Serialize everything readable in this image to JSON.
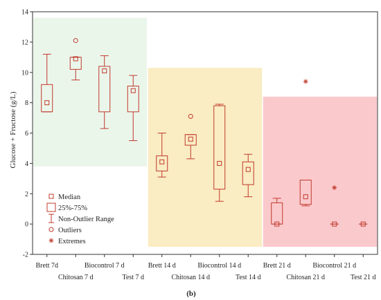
{
  "chart_data": {
    "type": "boxplot",
    "ylabel": "Glucose + Fructose (g/L)",
    "ylim": [
      -2,
      14
    ],
    "yticks": [
      -2,
      0,
      2,
      4,
      6,
      8,
      10,
      12,
      14
    ],
    "panel_label": "(b)",
    "categories": [
      "Brett 7d",
      "Chitosan 7 d",
      "Biocontrol 7 d",
      "Test 7 d",
      "Brett 14 d",
      "Chitosan 14 d",
      "Biocontrol 14 d",
      "Test 14 d",
      "Brett 21 d",
      "Chitosan 21 d",
      "Biocontrol 21 d",
      "Test 21 d"
    ],
    "groups": [
      {
        "stage": "7 d",
        "color": "#e6f4e6",
        "categories": [
          0,
          1,
          2,
          3
        ],
        "ymin": 3.8,
        "ymax": 13.6
      },
      {
        "stage": "14 d",
        "color": "#f9e7b4",
        "categories": [
          4,
          5,
          6,
          7
        ],
        "ymin": -1.5,
        "ymax": 10.3
      },
      {
        "stage": "21 d",
        "color": "#f9bcbf",
        "categories": [
          8,
          9,
          10,
          11
        ],
        "ymin": -1.5,
        "ymax": 8.4
      }
    ],
    "boxes": [
      {
        "median": 8.0,
        "q1": 7.4,
        "q3": 9.2,
        "min": 7.4,
        "max": 11.2,
        "outliers": [],
        "extremes": []
      },
      {
        "median": 10.9,
        "q1": 10.2,
        "q3": 11.0,
        "min": 9.5,
        "max": 11.0,
        "outliers": [
          12.1
        ],
        "extremes": []
      },
      {
        "median": 10.1,
        "q1": 7.4,
        "q3": 10.4,
        "min": 6.3,
        "max": 11.1,
        "outliers": [],
        "extremes": []
      },
      {
        "median": 8.8,
        "q1": 7.4,
        "q3": 9.1,
        "min": 5.5,
        "max": 9.8,
        "outliers": [],
        "extremes": []
      },
      {
        "median": 4.1,
        "q1": 3.5,
        "q3": 4.5,
        "min": 3.1,
        "max": 6.0,
        "outliers": [],
        "extremes": []
      },
      {
        "median": 5.6,
        "q1": 5.2,
        "q3": 5.9,
        "min": 4.3,
        "max": 5.9,
        "outliers": [
          7.1
        ],
        "extremes": []
      },
      {
        "median": 4.0,
        "q1": 2.3,
        "q3": 7.8,
        "min": 1.5,
        "max": 7.9,
        "outliers": [],
        "extremes": []
      },
      {
        "median": 3.6,
        "q1": 2.6,
        "q3": 4.1,
        "min": 1.8,
        "max": 4.6,
        "outliers": [],
        "extremes": []
      },
      {
        "median": 0.0,
        "q1": 0.0,
        "q3": 1.4,
        "min": 0.0,
        "max": 1.7,
        "outliers": [],
        "extremes": []
      },
      {
        "median": 1.8,
        "q1": 1.3,
        "q3": 2.9,
        "min": 1.2,
        "max": 2.9,
        "outliers": [],
        "extremes": [
          9.4
        ]
      },
      {
        "median": 0.0,
        "q1": 0.0,
        "q3": 0.0,
        "min": 0.0,
        "max": 0.0,
        "outliers": [],
        "extremes": [
          2.4
        ]
      },
      {
        "median": 0.0,
        "q1": 0.0,
        "q3": 0.0,
        "min": 0.0,
        "max": 0.0,
        "outliers": [],
        "extremes": []
      }
    ],
    "legend": {
      "position": "bottom-left",
      "entries": [
        {
          "symbol": "median",
          "label": "Median"
        },
        {
          "symbol": "box",
          "label": "25%-75%"
        },
        {
          "symbol": "whisker",
          "label": "Non-Outlier Range"
        },
        {
          "symbol": "outlier",
          "label": "Outliers"
        },
        {
          "symbol": "extreme",
          "label": "Extremes"
        }
      ]
    },
    "mark_color": "#c0392b"
  }
}
